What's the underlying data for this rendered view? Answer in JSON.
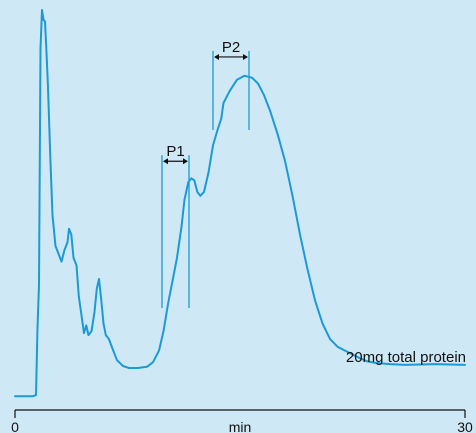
{
  "chart_data": {
    "type": "line",
    "xlabel": "min",
    "ylabel": "",
    "title": "",
    "xlim": [
      0,
      30
    ],
    "x_ticks": [
      {
        "value": 0,
        "label": "0"
      },
      {
        "value": 30,
        "label": "30"
      }
    ],
    "ylim": [
      0,
      100
    ],
    "grid": false,
    "annotation": "20mg total protein",
    "series": [
      {
        "name": "",
        "color": "#1a9ad6",
        "points": [
          [
            0.0,
            0.2
          ],
          [
            1.2,
            0.2
          ],
          [
            1.4,
            0.5
          ],
          [
            1.5,
            18
          ],
          [
            1.6,
            29
          ],
          [
            1.7,
            90
          ],
          [
            1.8,
            100
          ],
          [
            1.9,
            97.5
          ],
          [
            2.0,
            97
          ],
          [
            2.1,
            89
          ],
          [
            2.2,
            80
          ],
          [
            2.35,
            62
          ],
          [
            2.5,
            47
          ],
          [
            2.7,
            39
          ],
          [
            2.9,
            37
          ],
          [
            3.1,
            35
          ],
          [
            3.3,
            38
          ],
          [
            3.5,
            40
          ],
          [
            3.6,
            43.5
          ],
          [
            3.75,
            42
          ],
          [
            3.9,
            36
          ],
          [
            4.1,
            34
          ],
          [
            4.25,
            26
          ],
          [
            4.4,
            22
          ],
          [
            4.6,
            16.5
          ],
          [
            4.75,
            18.5
          ],
          [
            4.9,
            16
          ],
          [
            5.1,
            17
          ],
          [
            5.3,
            22
          ],
          [
            5.45,
            28
          ],
          [
            5.6,
            30.5
          ],
          [
            5.75,
            25
          ],
          [
            5.9,
            19
          ],
          [
            6.05,
            16
          ],
          [
            6.25,
            15
          ],
          [
            6.5,
            12.5
          ],
          [
            6.8,
            9.5
          ],
          [
            7.2,
            8.0
          ],
          [
            7.6,
            7.5
          ],
          [
            8.2,
            7.5
          ],
          [
            8.8,
            7.8
          ],
          [
            9.2,
            9.0
          ],
          [
            9.6,
            12
          ],
          [
            9.9,
            17
          ],
          [
            10.2,
            24
          ],
          [
            10.5,
            30
          ],
          [
            10.8,
            36
          ],
          [
            11.1,
            44
          ],
          [
            11.3,
            51
          ],
          [
            11.55,
            55.5
          ],
          [
            11.75,
            56.5
          ],
          [
            11.95,
            56
          ],
          [
            12.15,
            53
          ],
          [
            12.35,
            52
          ],
          [
            12.6,
            53
          ],
          [
            12.9,
            58
          ],
          [
            13.2,
            65
          ],
          [
            13.5,
            69
          ],
          [
            13.75,
            72
          ],
          [
            13.9,
            76
          ],
          [
            14.3,
            79
          ],
          [
            14.8,
            82
          ],
          [
            15.3,
            83
          ],
          [
            15.8,
            82.5
          ],
          [
            16.2,
            81
          ],
          [
            16.6,
            78
          ],
          [
            17.0,
            74
          ],
          [
            17.5,
            68
          ],
          [
            18.0,
            61
          ],
          [
            18.5,
            52
          ],
          [
            19.0,
            42
          ],
          [
            19.5,
            33
          ],
          [
            20.0,
            25
          ],
          [
            20.5,
            19
          ],
          [
            21.0,
            15
          ],
          [
            21.5,
            13
          ],
          [
            22.0,
            12
          ],
          [
            22.5,
            11
          ],
          [
            23.0,
            10
          ],
          [
            23.5,
            9.2
          ],
          [
            24.0,
            8.8
          ],
          [
            25.0,
            8.5
          ],
          [
            26.0,
            8.3
          ],
          [
            27.0,
            8.4
          ],
          [
            28.0,
            8.5
          ],
          [
            29.0,
            8.4
          ],
          [
            30.0,
            8.3
          ]
        ]
      }
    ],
    "fractions": [
      {
        "label": "P1",
        "start": 9.8,
        "end": 11.6,
        "bottom": 23
      },
      {
        "label": "P2",
        "start": 13.2,
        "end": 15.6,
        "bottom": 69
      }
    ]
  }
}
